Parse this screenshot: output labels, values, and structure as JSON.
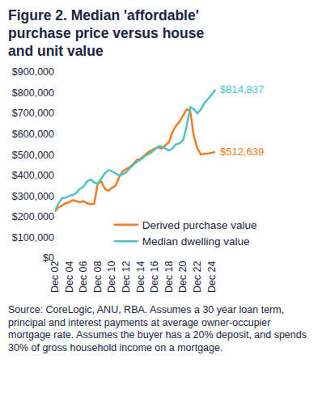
{
  "chart_data": {
    "type": "line",
    "title": "Figure 2. Median 'affordable' purchase price versus house and unit value",
    "footnote": "Source: CoreLogic, ANU, RBA. Assumes a 30 year loan term, principal and interest payments at average owner-occupier mortgage rate. Assumes the buyer has a 20% deposit, and spends 30% of gross household income on a mortgage.",
    "categories": [
      "Dec 02",
      null,
      null,
      null,
      "Dec 04",
      null,
      null,
      null,
      "Dec 06",
      null,
      null,
      null,
      "Dec 08",
      null,
      null,
      null,
      "Dec 10",
      null,
      null,
      null,
      "Dec 12",
      null,
      null,
      null,
      "Dec 14",
      null,
      null,
      null,
      "Dec 16",
      null,
      null,
      null,
      "Dec 18",
      null,
      null,
      null,
      "Dec 20",
      null,
      null,
      null,
      "Dec 22",
      null,
      null,
      null,
      "Dec 24",
      null
    ],
    "series": [
      {
        "name": "Derived purchase value",
        "color": "#f47b20",
        "line_style": "solid",
        "values": [
          225000,
          245000,
          255000,
          265000,
          270000,
          280000,
          275000,
          270000,
          275000,
          265000,
          260000,
          262000,
          360000,
          370000,
          335000,
          325000,
          340000,
          350000,
          390000,
          420000,
          430000,
          440000,
          455000,
          475000,
          480000,
          495000,
          510000,
          520000,
          530000,
          535000,
          530000,
          545000,
          560000,
          610000,
          640000,
          660000,
          690000,
          720000,
          710000,
          590000,
          530000,
          500000,
          505000,
          505000,
          510000,
          512639
        ]
      },
      {
        "name": "Median dwelling value",
        "color": "#4fc3c8",
        "line_style": "solid",
        "values": [
          230000,
          265000,
          290000,
          292000,
          300000,
          305000,
          315000,
          335000,
          345000,
          370000,
          380000,
          365000,
          360000,
          385000,
          410000,
          425000,
          420000,
          410000,
          400000,
          405000,
          415000,
          435000,
          450000,
          465000,
          475000,
          490000,
          500000,
          510000,
          525000,
          540000,
          540000,
          530000,
          520000,
          530000,
          550000,
          555000,
          570000,
          640000,
          730000,
          720000,
          700000,
          720000,
          750000,
          770000,
          790000,
          814837
        ]
      }
    ],
    "annotations": [
      {
        "text": "$814,837",
        "series": "Median dwelling value"
      },
      {
        "text": "$512,639",
        "series": "Derived purchase value"
      }
    ],
    "ylim": [
      0,
      900000
    ],
    "yticks": [
      {
        "value": 0,
        "label": "$0"
      },
      {
        "value": 100000,
        "label": "$100,000"
      },
      {
        "value": 200000,
        "label": "$200,000"
      },
      {
        "value": 300000,
        "label": "$300,000"
      },
      {
        "value": 400000,
        "label": "$400,000"
      },
      {
        "value": 500000,
        "label": "$500,000"
      },
      {
        "value": 600000,
        "label": "$600,000"
      },
      {
        "value": 700000,
        "label": "$700,000"
      },
      {
        "value": 800000,
        "label": "$800,000"
      },
      {
        "value": 900000,
        "label": "$900,000"
      }
    ],
    "grid": false,
    "legend": "bottom-right"
  }
}
